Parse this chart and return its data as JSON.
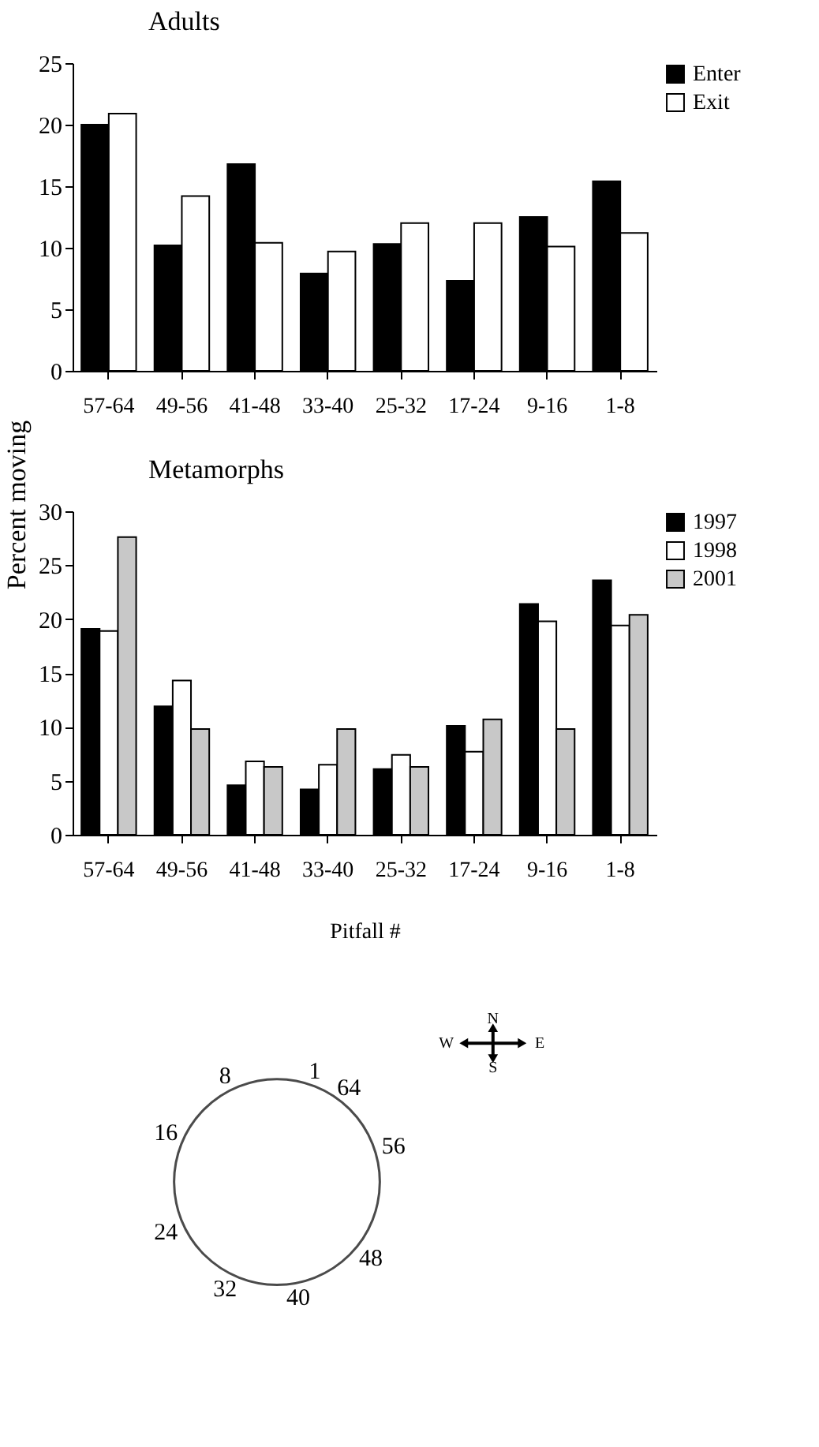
{
  "chart_data": [
    {
      "type": "bar",
      "title": "Adults",
      "ylabel": "Percent moving",
      "categories": [
        "57-64",
        "49-56",
        "41-48",
        "33-40",
        "25-32",
        "17-24",
        "9-16",
        "1-8"
      ],
      "series": [
        {
          "name": "Enter",
          "color": "#000000",
          "values": [
            20.0,
            10.2,
            16.8,
            7.9,
            10.3,
            7.3,
            12.5,
            15.4
          ]
        },
        {
          "name": "Exit",
          "color": "#ffffff",
          "values": [
            20.9,
            14.2,
            10.4,
            9.7,
            12.0,
            12.0,
            10.1,
            11.2
          ]
        }
      ],
      "ylim": [
        0,
        25
      ],
      "yticks": [
        0,
        5,
        10,
        15,
        20,
        25
      ],
      "grid": false,
      "legend": "top right"
    },
    {
      "type": "bar",
      "title": "Metamorphs",
      "xlabel": "Pitfall #",
      "categories": [
        "57-64",
        "49-56",
        "41-48",
        "33-40",
        "25-32",
        "17-24",
        "9-16",
        "1-8"
      ],
      "series": [
        {
          "name": "1997",
          "color": "#000000",
          "values": [
            19.1,
            11.9,
            4.6,
            4.2,
            6.1,
            10.1,
            21.4,
            23.6
          ]
        },
        {
          "name": "1998",
          "color": "#ffffff",
          "values": [
            18.9,
            14.3,
            6.8,
            6.5,
            7.4,
            7.7,
            19.8,
            19.4
          ]
        },
        {
          "name": "2001",
          "color": "#c8c8c8",
          "values": [
            27.6,
            9.8,
            6.3,
            9.8,
            6.3,
            10.7,
            9.8,
            20.4
          ]
        }
      ],
      "ylim": [
        0,
        30
      ],
      "yticks": [
        0,
        5,
        10,
        15,
        20,
        25,
        30
      ],
      "grid": false,
      "legend": "top right"
    },
    {
      "type": "other",
      "annotations": [
        "8",
        "1",
        "64",
        "56",
        "48",
        "40",
        "32",
        "24",
        "16",
        "N",
        "E",
        "S",
        "W"
      ]
    }
  ]
}
